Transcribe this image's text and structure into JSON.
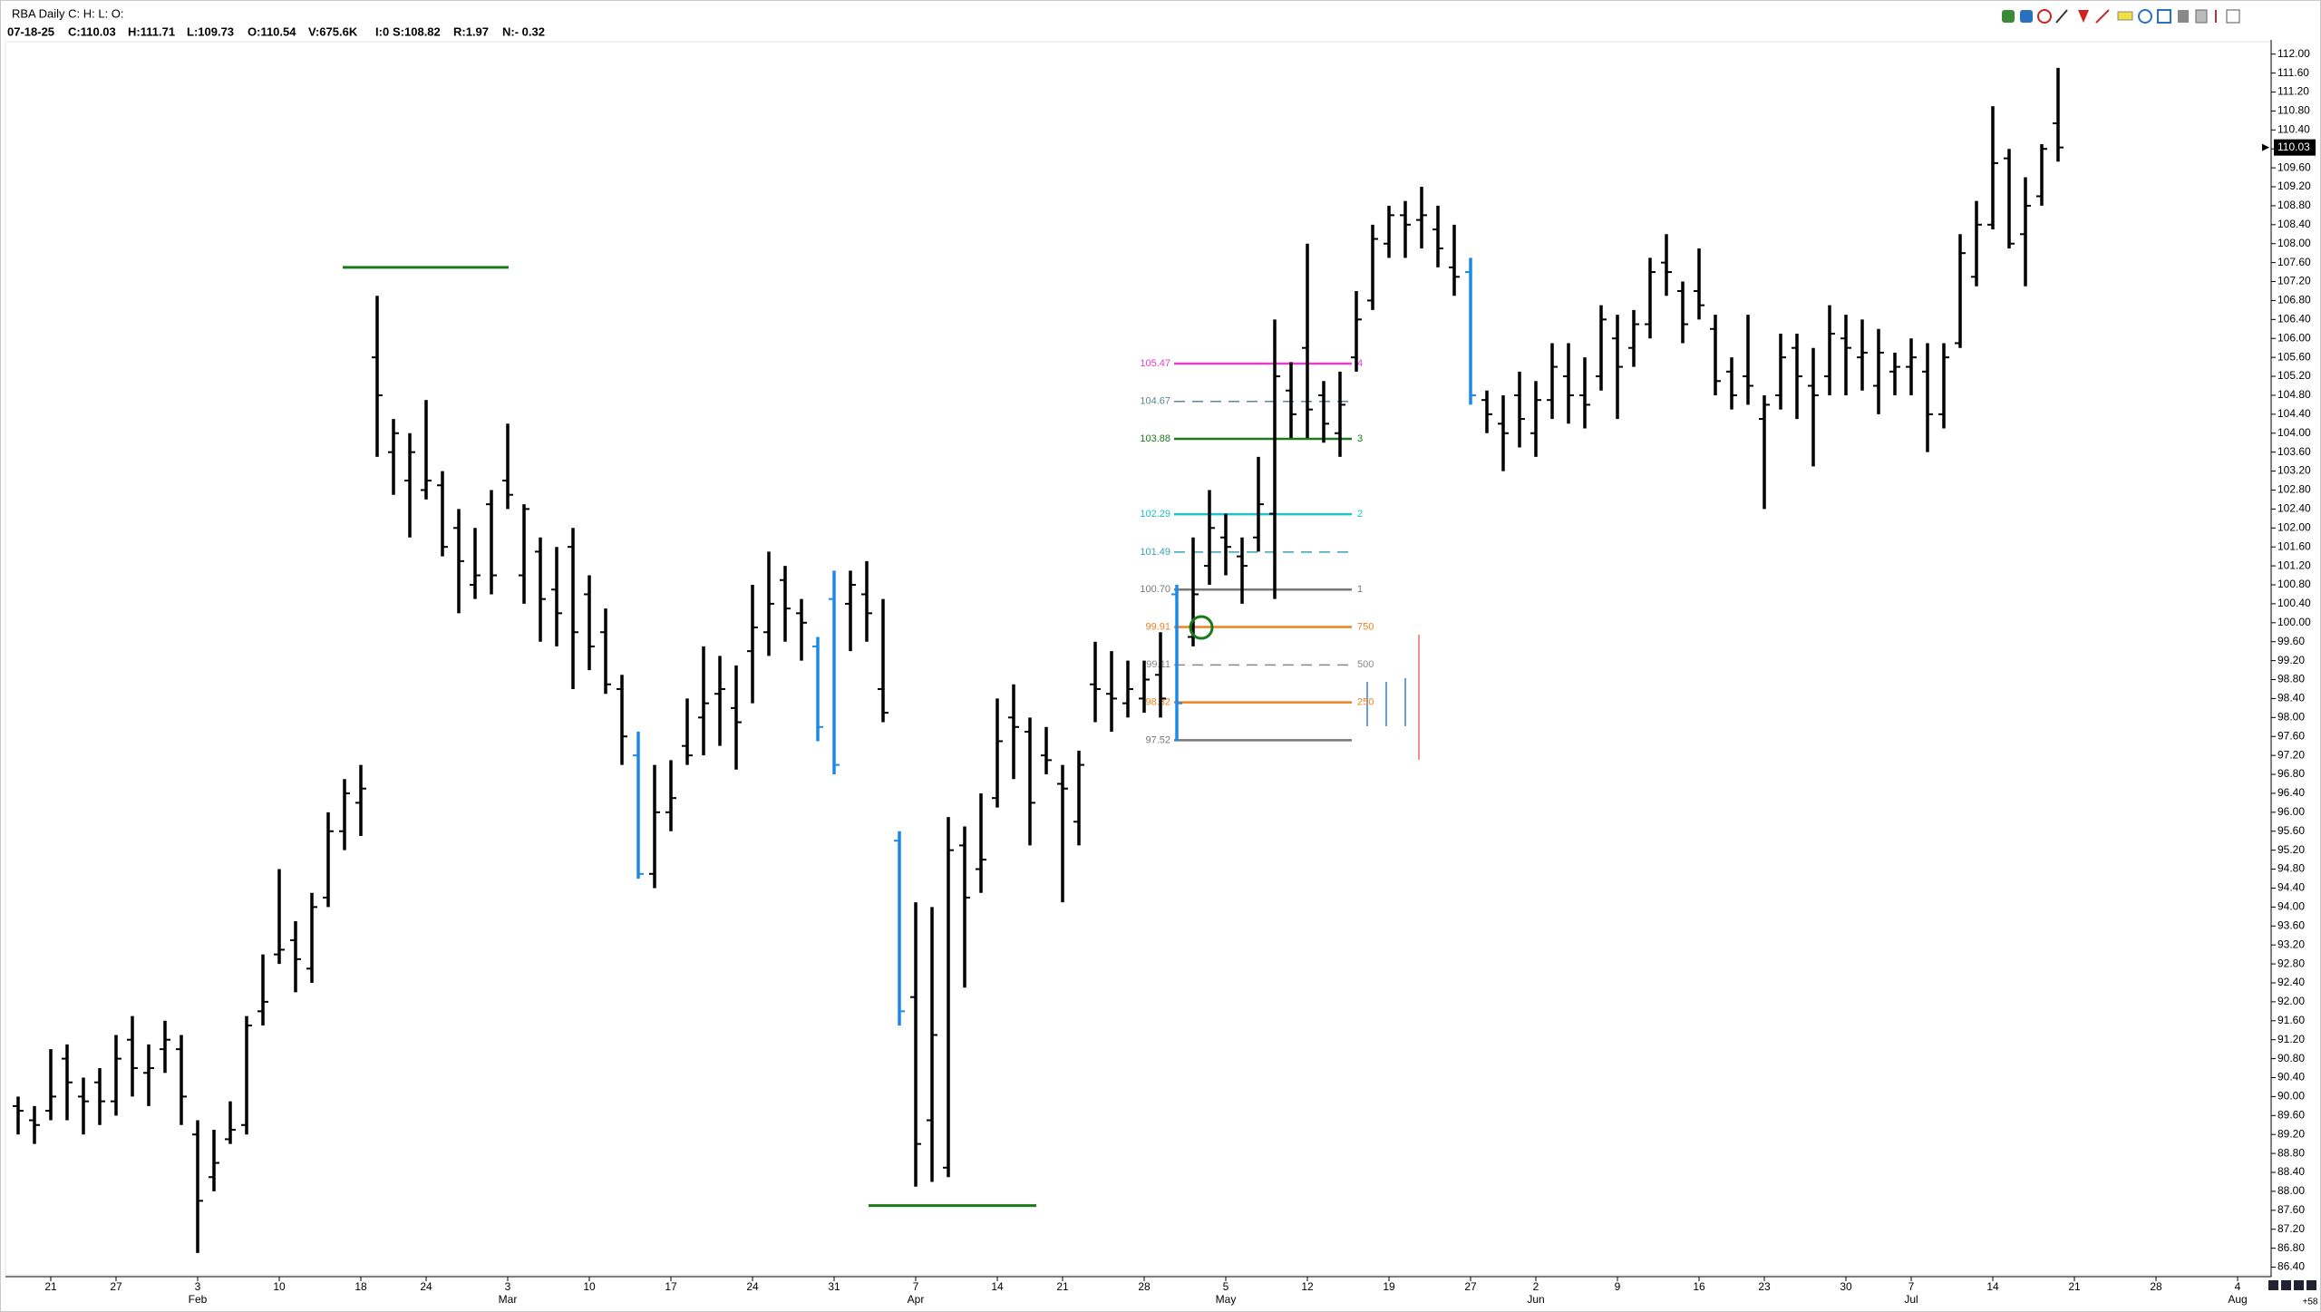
{
  "chart_data": {
    "type": "ohlc",
    "title": "RBA Daily C: H: L: O:",
    "stats": [
      "07-18-25",
      "C:110.03",
      "H:111.71",
      "L:109.73",
      "O:110.54",
      "V:675.6K",
      "I:0",
      "S:108.82",
      "R:1.97",
      "N:- 0.32"
    ],
    "corner_note": "+58",
    "categories": [
      null,
      null,
      "21",
      null,
      null,
      null,
      "27",
      null,
      null,
      null,
      null,
      "3",
      null,
      null,
      null,
      null,
      "10",
      null,
      null,
      null,
      null,
      "18",
      null,
      null,
      null,
      "24",
      null,
      null,
      null,
      null,
      "3",
      null,
      null,
      null,
      null,
      "10",
      null,
      null,
      null,
      null,
      "17",
      null,
      null,
      null,
      null,
      "24",
      null,
      null,
      null,
      null,
      "31",
      null,
      null,
      null,
      null,
      "7",
      null,
      null,
      null,
      null,
      "14",
      null,
      null,
      null,
      "21",
      null,
      null,
      null,
      null,
      "28",
      null,
      null,
      null,
      null,
      "5",
      null,
      null,
      null,
      null,
      "12",
      null,
      null,
      null,
      null,
      "19",
      null,
      null,
      null,
      null,
      "27",
      null,
      null,
      null,
      "2",
      null,
      null,
      null,
      null,
      "9",
      null,
      null,
      null,
      null,
      "16",
      null,
      null,
      null,
      "23",
      null,
      null,
      null,
      null,
      "30",
      null,
      null,
      null,
      "7",
      null,
      null,
      null,
      null,
      "14",
      null,
      null,
      null,
      null,
      "21",
      null,
      null,
      null,
      null,
      "28",
      null,
      null,
      null,
      null,
      "4",
      null
    ],
    "months": [
      null,
      null,
      null,
      null,
      null,
      null,
      null,
      null,
      null,
      null,
      null,
      "Feb",
      null,
      null,
      null,
      null,
      null,
      null,
      null,
      null,
      null,
      null,
      null,
      null,
      null,
      null,
      null,
      null,
      null,
      null,
      "Mar",
      null,
      null,
      null,
      null,
      null,
      null,
      null,
      null,
      null,
      null,
      null,
      null,
      null,
      null,
      null,
      null,
      null,
      null,
      null,
      null,
      null,
      null,
      null,
      null,
      "Apr",
      null,
      null,
      null,
      null,
      null,
      null,
      null,
      null,
      null,
      null,
      null,
      null,
      null,
      null,
      null,
      null,
      null,
      null,
      "May",
      null,
      null,
      null,
      null,
      null,
      null,
      null,
      null,
      null,
      null,
      null,
      null,
      null,
      null,
      null,
      null,
      null,
      null,
      "Jun",
      null,
      null,
      null,
      null,
      null,
      null,
      null,
      null,
      null,
      null,
      null,
      null,
      null,
      null,
      null,
      null,
      null,
      null,
      null,
      null,
      null,
      null,
      "Jul",
      null,
      null,
      null,
      null,
      null,
      null,
      null,
      null,
      null,
      null,
      null,
      null,
      null,
      null,
      null,
      null,
      null,
      null,
      null,
      "Aug",
      null
    ],
    "open": [
      89.8,
      89.5,
      89.7,
      90.8,
      90.0,
      90.3,
      89.9,
      91.2,
      90.5,
      91.0,
      91.0,
      89.2,
      88.3,
      89.1,
      89.4,
      91.8,
      93.0,
      93.3,
      92.7,
      94.2,
      95.6,
      96.2,
      105.6,
      103.6,
      103.0,
      102.8,
      102.9,
      102.0,
      100.8,
      102.5,
      103.0,
      101.0,
      101.5,
      100.7,
      101.6,
      100.6,
      99.8,
      98.6,
      97.2,
      94.7,
      96.0,
      97.4,
      98.0,
      98.5,
      98.2,
      99.4,
      99.8,
      100.9,
      100.2,
      99.5,
      100.5,
      100.4,
      100.6,
      98.6,
      95.4,
      92.1,
      89.5,
      88.5,
      95.3,
      94.8,
      96.3,
      98.0,
      97.7,
      97.2,
      96.6,
      95.8,
      98.7,
      98.5,
      98.3,
      98.4,
      98.9,
      100.6,
      99.7,
      101.2,
      101.8,
      101.4,
      101.8,
      102.3,
      104.9,
      105.8,
      104.8,
      104.0,
      105.6,
      106.8,
      108.0,
      108.6,
      108.5,
      108.3,
      107.5,
      107.4,
      104.7,
      104.2,
      104.8,
      104.0,
      104.7,
      105.2,
      104.8,
      105.2,
      106.0,
      105.8,
      106.3,
      107.6,
      107.0,
      107.0,
      106.2,
      105.3,
      105.2,
      104.3,
      104.8,
      105.8,
      105.0,
      105.2,
      106.0,
      105.6,
      105.0,
      105.3,
      105.4,
      105.3,
      104.4,
      105.9,
      107.3,
      108.4,
      109.8,
      108.2,
      109.0,
      110.54,
      null,
      null,
      null,
      null,
      null,
      null,
      null,
      null,
      null,
      null,
      null,
      null
    ],
    "high": [
      90.0,
      89.8,
      91.0,
      91.1,
      90.4,
      90.6,
      91.3,
      91.7,
      91.1,
      91.6,
      91.3,
      89.5,
      89.3,
      89.9,
      91.7,
      93.0,
      94.8,
      93.7,
      94.3,
      96.0,
      96.7,
      97.0,
      106.9,
      104.3,
      104.0,
      104.7,
      103.2,
      102.4,
      102.0,
      102.8,
      104.2,
      102.5,
      101.8,
      101.6,
      102.0,
      101.0,
      100.3,
      98.9,
      97.7,
      97.0,
      97.1,
      98.4,
      99.5,
      99.3,
      99.1,
      100.8,
      101.5,
      101.2,
      100.5,
      99.7,
      101.1,
      101.1,
      101.3,
      100.5,
      95.6,
      94.1,
      94.0,
      95.9,
      95.7,
      96.4,
      98.4,
      98.7,
      98.0,
      97.8,
      97.0,
      97.3,
      99.6,
      99.4,
      99.2,
      99.2,
      99.8,
      100.8,
      101.8,
      102.8,
      102.3,
      101.8,
      103.5,
      106.4,
      105.5,
      108.0,
      105.1,
      105.3,
      107.0,
      108.4,
      108.8,
      108.9,
      109.2,
      108.8,
      108.4,
      107.7,
      104.9,
      104.8,
      105.3,
      105.1,
      105.9,
      105.9,
      105.6,
      106.7,
      106.5,
      106.6,
      107.7,
      108.2,
      107.2,
      107.9,
      106.5,
      105.6,
      106.5,
      104.8,
      106.1,
      106.1,
      105.8,
      106.7,
      106.5,
      106.4,
      106.2,
      105.7,
      106.0,
      105.9,
      105.9,
      108.2,
      108.9,
      110.9,
      110.0,
      109.4,
      110.1,
      111.71,
      null,
      null,
      null,
      null,
      null,
      null,
      null,
      null,
      null,
      null,
      null,
      null
    ],
    "low": [
      89.2,
      89.0,
      89.5,
      89.5,
      89.2,
      89.4,
      89.6,
      90.0,
      89.8,
      90.5,
      89.4,
      86.7,
      88.0,
      89.0,
      89.2,
      91.5,
      92.8,
      92.2,
      92.4,
      94.0,
      95.2,
      95.5,
      103.5,
      102.7,
      101.8,
      102.6,
      101.4,
      100.2,
      100.5,
      100.6,
      102.4,
      100.4,
      99.6,
      99.5,
      98.6,
      99.0,
      98.5,
      97.0,
      94.6,
      94.4,
      95.6,
      97.0,
      97.2,
      97.4,
      96.9,
      98.3,
      99.3,
      99.6,
      99.2,
      97.5,
      96.8,
      99.4,
      99.6,
      97.9,
      91.5,
      88.1,
      88.2,
      88.3,
      92.3,
      94.3,
      96.1,
      96.7,
      95.3,
      96.8,
      94.1,
      95.3,
      97.9,
      97.7,
      98.0,
      98.1,
      98.0,
      97.5,
      99.5,
      100.8,
      101.0,
      100.4,
      101.5,
      100.5,
      103.9,
      103.9,
      103.8,
      103.5,
      105.3,
      106.6,
      107.7,
      107.7,
      107.9,
      107.5,
      106.9,
      104.6,
      104.0,
      103.2,
      103.7,
      103.5,
      104.3,
      104.2,
      104.1,
      104.9,
      104.3,
      105.4,
      106.0,
      106.9,
      105.9,
      106.4,
      104.8,
      104.5,
      104.6,
      102.4,
      104.5,
      104.3,
      103.3,
      104.8,
      104.8,
      104.9,
      104.4,
      104.8,
      104.8,
      103.6,
      104.1,
      105.8,
      107.1,
      108.3,
      107.9,
      107.1,
      108.8,
      109.73,
      null,
      null,
      null,
      null,
      null,
      null,
      null,
      null,
      null,
      null,
      null,
      null
    ],
    "close": [
      89.7,
      89.4,
      90.0,
      90.3,
      89.9,
      89.9,
      90.8,
      90.6,
      90.6,
      91.2,
      90.0,
      87.8,
      88.6,
      89.3,
      91.5,
      92.0,
      93.1,
      92.9,
      94.0,
      95.6,
      96.4,
      96.5,
      104.8,
      104.0,
      103.6,
      103.0,
      101.6,
      101.3,
      101.0,
      101.0,
      102.7,
      102.4,
      100.5,
      100.2,
      99.8,
      99.5,
      98.7,
      97.6,
      94.7,
      96.0,
      96.3,
      97.2,
      98.3,
      98.6,
      97.9,
      99.9,
      100.4,
      100.3,
      100.0,
      97.8,
      97.0,
      100.8,
      100.2,
      98.1,
      91.8,
      89.0,
      91.3,
      95.2,
      94.2,
      95.0,
      97.5,
      97.8,
      96.2,
      97.1,
      96.5,
      97.0,
      98.6,
      98.4,
      98.6,
      98.8,
      98.4,
      98.3,
      100.6,
      102.0,
      101.6,
      101.2,
      102.5,
      105.2,
      104.4,
      104.5,
      104.2,
      104.6,
      106.4,
      108.1,
      108.6,
      108.4,
      108.6,
      107.9,
      107.3,
      104.8,
      104.4,
      104.0,
      104.3,
      104.7,
      105.4,
      104.8,
      104.6,
      106.4,
      105.4,
      106.3,
      107.4,
      107.4,
      106.3,
      106.7,
      105.1,
      104.8,
      105.0,
      104.6,
      105.6,
      105.2,
      104.8,
      106.1,
      105.8,
      105.7,
      105.7,
      105.4,
      105.6,
      104.4,
      105.6,
      107.8,
      108.4,
      109.7,
      108.0,
      108.8,
      110.0,
      110.03,
      null,
      null,
      null,
      null,
      null,
      null,
      null,
      null,
      null,
      null,
      null,
      null
    ],
    "colors": [
      "#000",
      "#000",
      "#000",
      "#000",
      "#000",
      "#000",
      "#000",
      "#000",
      "#000",
      "#000",
      "#000",
      "#000",
      "#000",
      "#000",
      "#000",
      "#000",
      "#000",
      "#000",
      "#000",
      "#000",
      "#000",
      "#000",
      "#000",
      "#000",
      "#000",
      "#000",
      "#000",
      "#000",
      "#000",
      "#000",
      "#000",
      "#000",
      "#000",
      "#000",
      "#000",
      "#000",
      "#000",
      "#000",
      "#1e88e5",
      "#000",
      "#000",
      "#000",
      "#000",
      "#000",
      "#000",
      "#000",
      "#000",
      "#000",
      "#000",
      "#1e88e5",
      "#1e88e5",
      "#000",
      "#000",
      "#000",
      "#1e88e5",
      "#000",
      "#000",
      "#000",
      "#000",
      "#000",
      "#000",
      "#000",
      "#000",
      "#000",
      "#000",
      "#000",
      "#000",
      "#000",
      "#000",
      "#000",
      "#000",
      "#1e88e5",
      "#000",
      "#000",
      "#000",
      "#000",
      "#000",
      "#000",
      "#000",
      "#000",
      "#000",
      "#000",
      "#000",
      "#000",
      "#000",
      "#000",
      "#000",
      "#000",
      "#000",
      "#1e88e5",
      "#000",
      "#000",
      "#000",
      "#000",
      "#000",
      "#000",
      "#000",
      "#000",
      "#000",
      "#000",
      "#000",
      "#000",
      "#000",
      "#000",
      "#000",
      "#000",
      "#000",
      "#000",
      "#000",
      "#000",
      "#000",
      "#000",
      "#000",
      "#000",
      "#000",
      "#000",
      "#000",
      "#000",
      "#000",
      "#000",
      "#000",
      "#000",
      "#000",
      "#000",
      "#000",
      "#000",
      null,
      null,
      null,
      null,
      null,
      null,
      null,
      null,
      null,
      null,
      null,
      null
    ],
    "ylim": [
      86.2,
      112.3
    ],
    "yticks": [
      {
        "value": 112,
        "label": "112.00"
      },
      {
        "value": 111.6,
        "label": "111.60"
      },
      {
        "value": 111.2,
        "label": "111.20"
      },
      {
        "value": 110.8,
        "label": "110.80"
      },
      {
        "value": 110.4,
        "label": "110.40"
      },
      {
        "value": 110,
        "label": "110.00"
      },
      {
        "value": 109.6,
        "label": "109.60"
      },
      {
        "value": 109.2,
        "label": "109.20"
      },
      {
        "value": 108.8,
        "label": "108.80"
      },
      {
        "value": 108.4,
        "label": "108.40"
      },
      {
        "value": 108,
        "label": "108.00"
      },
      {
        "value": 107.6,
        "label": "107.60"
      },
      {
        "value": 107.2,
        "label": "107.20"
      },
      {
        "value": 106.8,
        "label": "106.80"
      },
      {
        "value": 106.4,
        "label": "106.40"
      },
      {
        "value": 106,
        "label": "106.00"
      },
      {
        "value": 105.6,
        "label": "105.60"
      },
      {
        "value": 105.2,
        "label": "105.20"
      },
      {
        "value": 104.8,
        "label": "104.80"
      },
      {
        "value": 104.4,
        "label": "104.40"
      },
      {
        "value": 104,
        "label": "104.00"
      },
      {
        "value": 103.6,
        "label": "103.60"
      },
      {
        "value": 103.2,
        "label": "103.20"
      },
      {
        "value": 102.8,
        "label": "102.80"
      },
      {
        "value": 102.4,
        "label": "102.40"
      },
      {
        "value": 102,
        "label": "102.00"
      },
      {
        "value": 101.6,
        "label": "101.60"
      },
      {
        "value": 101.2,
        "label": "101.20"
      },
      {
        "value": 100.8,
        "label": "100.80"
      },
      {
        "value": 100.4,
        "label": "100.40"
      },
      {
        "value": 100,
        "label": "100.00"
      },
      {
        "value": 99.6,
        "label": "99.60"
      },
      {
        "value": 99.2,
        "label": "99.20"
      },
      {
        "value": 98.8,
        "label": "98.80"
      },
      {
        "value": 98.4,
        "label": "98.40"
      },
      {
        "value": 98,
        "label": "98.00"
      },
      {
        "value": 97.6,
        "label": "97.60"
      },
      {
        "value": 97.2,
        "label": "97.20"
      },
      {
        "value": 96.8,
        "label": "96.80"
      },
      {
        "value": 96.4,
        "label": "96.40"
      },
      {
        "value": 96,
        "label": "96.00"
      },
      {
        "value": 95.6,
        "label": "95.60"
      },
      {
        "value": 95.2,
        "label": "95.20"
      },
      {
        "value": 94.8,
        "label": "94.80"
      },
      {
        "value": 94.4,
        "label": "94.40"
      },
      {
        "value": 94,
        "label": "94.00"
      },
      {
        "value": 93.6,
        "label": "93.60"
      },
      {
        "value": 93.2,
        "label": "93.20"
      },
      {
        "value": 92.8,
        "label": "92.80"
      },
      {
        "value": 92.4,
        "label": "92.40"
      },
      {
        "value": 92,
        "label": "92.00"
      },
      {
        "value": 91.6,
        "label": "91.60"
      },
      {
        "value": 91.2,
        "label": "91.20"
      },
      {
        "value": 90.8,
        "label": "90.80"
      },
      {
        "value": 90.4,
        "label": "90.40"
      },
      {
        "value": 90,
        "label": "90.00"
      },
      {
        "value": 89.6,
        "label": "89.60"
      },
      {
        "value": 89.2,
        "label": "89.20"
      },
      {
        "value": 88.8,
        "label": "88.80"
      },
      {
        "value": 88.4,
        "label": "88.40"
      },
      {
        "value": 88,
        "label": "88.00"
      },
      {
        "value": 87.6,
        "label": "87.60"
      },
      {
        "value": 87.2,
        "label": "87.20"
      },
      {
        "value": 86.8,
        "label": "86.80"
      },
      {
        "value": 86.4,
        "label": "86.40"
      }
    ],
    "last_price": 110.03,
    "levels": [
      {
        "value": 105.47,
        "tag": "4",
        "color": "#e83ec8",
        "dashed": false
      },
      {
        "value": 104.67,
        "color": "#5f8596",
        "dashed": true
      },
      {
        "value": 103.88,
        "tag": "3",
        "color": "#1a7a1a",
        "dashed": false
      },
      {
        "value": 102.29,
        "tag": "2",
        "color": "#22c0c8",
        "dashed": false
      },
      {
        "value": 101.49,
        "color": "#3aa0b0",
        "dashed": true
      },
      {
        "value": 100.7,
        "label": "100.70",
        "tag": "1",
        "color": "#777777",
        "dashed": false
      },
      {
        "value": 99.91,
        "tag": "750",
        "color": "#f08020",
        "dashed": false
      },
      {
        "value": 99.11,
        "tag": "500",
        "color": "#888888",
        "dashed": true
      },
      {
        "value": 98.32,
        "tag": "250",
        "color": "#f08020",
        "dashed": false
      },
      {
        "value": 97.52,
        "color": "#777777",
        "dashed": false
      }
    ],
    "marker_lines": [
      {
        "value": 107.5,
        "color": "#1a7a1a"
      },
      {
        "value": 87.7,
        "color": "#1a7a1a"
      }
    ],
    "circle_marker": {
      "value": 99.9,
      "color": "#1a7a1a"
    }
  }
}
